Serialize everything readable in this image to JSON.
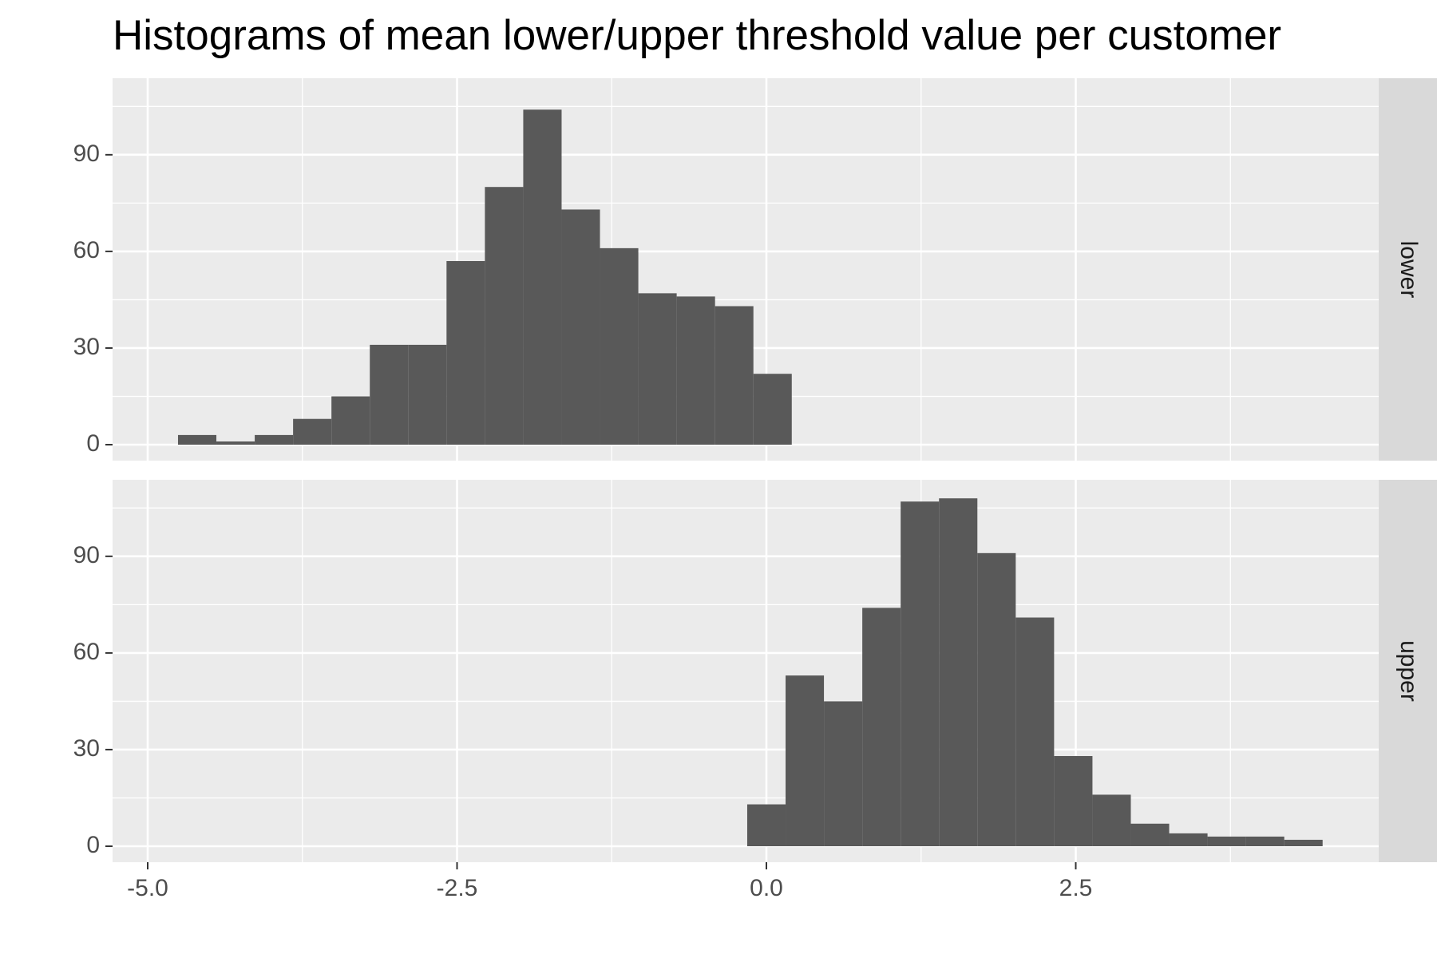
{
  "chart_data": {
    "type": "bar",
    "title": "Histograms of mean lower/upper threshold value per customer",
    "xlabel": "",
    "ylabel": "",
    "xlim": [
      -5.0,
      4.5
    ],
    "ylim": [
      0,
      113
    ],
    "x_ticks": [
      "-5.0",
      "-2.5",
      "0.0",
      "2.5"
    ],
    "x_tick_values": [
      -5.0,
      -2.5,
      0.0,
      2.5
    ],
    "y_ticks": [
      "0",
      "30",
      "60",
      "90"
    ],
    "y_tick_values": [
      0,
      30,
      60,
      90
    ],
    "grid": true,
    "bar_color": "#595959",
    "panel_background": "#ebebeb",
    "strip_background": "#d9d9d9",
    "bin_width": 0.31,
    "panels": [
      {
        "label": "lower",
        "bin_centers": [
          -4.6,
          -4.29,
          -3.98,
          -3.67,
          -3.36,
          -3.05,
          -2.74,
          -2.43,
          -2.12,
          -1.81,
          -1.5,
          -1.19,
          -0.88,
          -0.57,
          -0.26,
          0.05
        ],
        "counts": [
          3,
          1,
          3,
          8,
          15,
          31,
          31,
          57,
          80,
          104,
          73,
          61,
          47,
          46,
          43,
          22
        ]
      },
      {
        "label": "upper",
        "bin_centers": [
          0.0,
          0.31,
          0.62,
          0.93,
          1.24,
          1.55,
          1.86,
          2.17,
          2.48,
          2.79,
          3.1,
          3.41,
          3.72,
          4.03,
          4.34
        ],
        "counts": [
          13,
          53,
          45,
          74,
          107,
          108,
          91,
          71,
          28,
          16,
          7,
          4,
          3,
          3,
          2
        ]
      }
    ]
  }
}
